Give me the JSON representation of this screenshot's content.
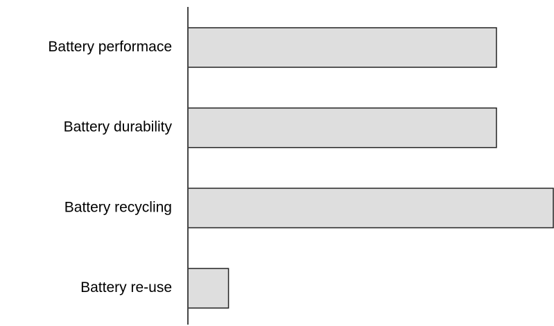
{
  "chart_data": {
    "type": "bar",
    "orientation": "horizontal",
    "categories": [
      "Battery performace",
      "Battery durability",
      "Battery recycling",
      "Battery re-use"
    ],
    "values": [
      76,
      76,
      90,
      10
    ],
    "xlim": [
      0,
      90
    ],
    "title": "",
    "xlabel": "",
    "ylabel": "",
    "bar_fill": "#dedede",
    "bar_stroke": "#222222",
    "axis_color": "#444444",
    "grid": false,
    "legend": "none"
  }
}
